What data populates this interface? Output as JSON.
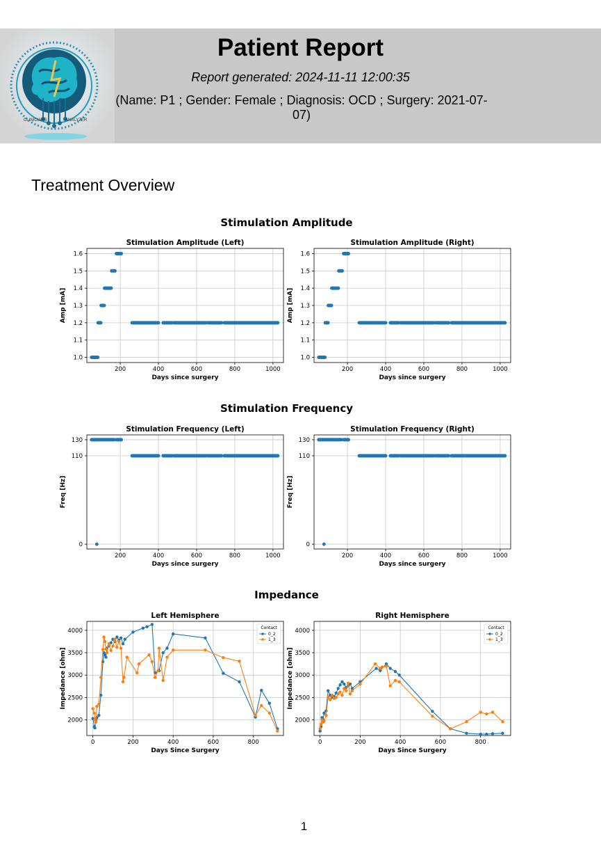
{
  "header": {
    "title": "Patient Report",
    "generated": "Report generated: 2024-11-11 12:00:35",
    "patient_info": "(Name: P1 ; Gender: Female ; Diagnosis: OCD ; Surgery: 2021-07-07)",
    "logo_text_left": "CLINICIANS",
    "logo_text_right": "ANALYZER",
    "logo_icon": "brain-circuit-logo"
  },
  "section_title": "Treatment Overview",
  "figures": {
    "amplitude": "Stimulation Amplitude",
    "frequency": "Stimulation Frequency",
    "impedance": "Impedance"
  },
  "page_number": "1",
  "colors": {
    "blue": "#1f77b4",
    "orange": "#ff7f0e",
    "header_bg": "#c8c8c8"
  },
  "chart_data": [
    {
      "id": "amp_left",
      "type": "scatter",
      "title": "Stimulation Amplitude (Left)",
      "xlabel": "Days since surgery",
      "ylabel": "Amp [mA]",
      "xlim": [
        25,
        1055
      ],
      "ylim": [
        0.97,
        1.63
      ],
      "xticks": [
        200,
        400,
        600,
        800,
        1000
      ],
      "yticks": [
        1.0,
        1.1,
        1.2,
        1.3,
        1.4,
        1.5,
        1.6
      ],
      "ytick_labels": [
        "1.0",
        "1.1",
        "1.2",
        "1.3",
        "1.4",
        "1.5",
        "1.6"
      ],
      "grid": true,
      "series": [
        {
          "color": "#1f77b4",
          "segments": [
            {
              "from": 50,
              "to": 82,
              "y": 1.0
            },
            {
              "from": 84,
              "to": 98,
              "y": 1.2
            },
            {
              "from": 100,
              "to": 116,
              "y": 1.3
            },
            {
              "from": 118,
              "to": 152,
              "y": 1.4
            },
            {
              "from": 155,
              "to": 172,
              "y": 1.5
            },
            {
              "from": 180,
              "to": 205,
              "y": 1.6
            },
            {
              "from": 262,
              "to": 400,
              "y": 1.2
            },
            {
              "from": 425,
              "to": 470,
              "y": 1.2
            },
            {
              "from": 480,
              "to": 650,
              "y": 1.2
            },
            {
              "from": 660,
              "to": 730,
              "y": 1.2
            },
            {
              "from": 745,
              "to": 1025,
              "y": 1.2
            }
          ]
        }
      ]
    },
    {
      "id": "amp_right",
      "type": "scatter",
      "title": "Stimulation Amplitude (Right)",
      "xlabel": "Days since surgery",
      "ylabel": "Amp [mA]",
      "xlim": [
        25,
        1055
      ],
      "ylim": [
        0.97,
        1.63
      ],
      "xticks": [
        200,
        400,
        600,
        800,
        1000
      ],
      "yticks": [
        1.0,
        1.1,
        1.2,
        1.3,
        1.4,
        1.5,
        1.6
      ],
      "ytick_labels": [
        "1.0",
        "1.1",
        "1.2",
        "1.3",
        "1.4",
        "1.5",
        "1.6"
      ],
      "grid": true,
      "series": [
        {
          "color": "#1f77b4",
          "segments": [
            {
              "from": 50,
              "to": 82,
              "y": 1.0
            },
            {
              "from": 84,
              "to": 98,
              "y": 1.2
            },
            {
              "from": 100,
              "to": 116,
              "y": 1.3
            },
            {
              "from": 118,
              "to": 152,
              "y": 1.4
            },
            {
              "from": 155,
              "to": 172,
              "y": 1.5
            },
            {
              "from": 180,
              "to": 205,
              "y": 1.6
            },
            {
              "from": 262,
              "to": 400,
              "y": 1.2
            },
            {
              "from": 425,
              "to": 470,
              "y": 1.2
            },
            {
              "from": 480,
              "to": 650,
              "y": 1.2
            },
            {
              "from": 660,
              "to": 730,
              "y": 1.2
            },
            {
              "from": 745,
              "to": 1025,
              "y": 1.2
            }
          ]
        }
      ]
    },
    {
      "id": "freq_left",
      "type": "scatter",
      "title": "Stimulation Frequency (Left)",
      "xlabel": "Days since surgery",
      "ylabel": "Freq [Hz]",
      "xlim": [
        25,
        1055
      ],
      "ylim": [
        -6,
        136
      ],
      "xticks": [
        200,
        400,
        600,
        800,
        1000
      ],
      "yticks": [
        0,
        110,
        130
      ],
      "ytick_labels": [
        "0",
        "110",
        "130"
      ],
      "grid": true,
      "series": [
        {
          "color": "#1f77b4",
          "segments": [
            {
              "from": 50,
              "to": 168,
              "y": 130
            },
            {
              "from": 180,
              "to": 205,
              "y": 130
            },
            {
              "from": 262,
              "to": 400,
              "y": 110
            },
            {
              "from": 425,
              "to": 470,
              "y": 110
            },
            {
              "from": 480,
              "to": 650,
              "y": 110
            },
            {
              "from": 660,
              "to": 730,
              "y": 110
            },
            {
              "from": 745,
              "to": 1025,
              "y": 110
            }
          ],
          "points": [
            {
              "x": 77,
              "y": 0
            }
          ]
        }
      ]
    },
    {
      "id": "freq_right",
      "type": "scatter",
      "title": "Stimulation Frequency (Right)",
      "xlabel": "Days since surgery",
      "ylabel": "Freq [Hz]",
      "xlim": [
        25,
        1055
      ],
      "ylim": [
        -6,
        136
      ],
      "xticks": [
        200,
        400,
        600,
        800,
        1000
      ],
      "yticks": [
        0,
        110,
        130
      ],
      "ytick_labels": [
        "0",
        "110",
        "130"
      ],
      "grid": true,
      "series": [
        {
          "color": "#1f77b4",
          "segments": [
            {
              "from": 50,
              "to": 168,
              "y": 130
            },
            {
              "from": 180,
              "to": 205,
              "y": 130
            },
            {
              "from": 262,
              "to": 400,
              "y": 110
            },
            {
              "from": 425,
              "to": 470,
              "y": 110
            },
            {
              "from": 480,
              "to": 650,
              "y": 110
            },
            {
              "from": 660,
              "to": 730,
              "y": 110
            },
            {
              "from": 745,
              "to": 1025,
              "y": 110
            }
          ],
          "points": [
            {
              "x": 77,
              "y": 0
            }
          ]
        }
      ]
    },
    {
      "id": "imp_left",
      "type": "line",
      "title": "Left Hemisphere",
      "xlabel": "Days Since Surgery",
      "ylabel": "Impedance [ohm]",
      "xlim": [
        -30,
        950
      ],
      "ylim": [
        1650,
        4200
      ],
      "xticks": [
        0,
        200,
        400,
        600,
        800
      ],
      "yticks": [
        2000,
        2500,
        3000,
        3500,
        4000
      ],
      "ytick_labels": [
        "2000",
        "2500",
        "3000",
        "3500",
        "4000"
      ],
      "grid": true,
      "legend": {
        "title": "Contact",
        "position": "top-right"
      },
      "series": [
        {
          "name": "0_2",
          "color": "#1f77b4",
          "points": [
            [
              0,
              2030
            ],
            [
              7,
              1850
            ],
            [
              10,
              1820
            ],
            [
              15,
              2000
            ],
            [
              20,
              2050
            ],
            [
              30,
              2100
            ],
            [
              40,
              2550
            ],
            [
              50,
              3300
            ],
            [
              55,
              3500
            ],
            [
              60,
              3450
            ],
            [
              65,
              3400
            ],
            [
              70,
              3600
            ],
            [
              80,
              3650
            ],
            [
              90,
              3720
            ],
            [
              100,
              3800
            ],
            [
              110,
              3750
            ],
            [
              120,
              3850
            ],
            [
              130,
              3780
            ],
            [
              140,
              3830
            ],
            [
              150,
              3700
            ],
            [
              160,
              3800
            ],
            [
              200,
              3960
            ],
            [
              250,
              4050
            ],
            [
              270,
              4080
            ],
            [
              295,
              4130
            ],
            [
              310,
              3050
            ],
            [
              330,
              3100
            ],
            [
              350,
              3500
            ],
            [
              370,
              3600
            ],
            [
              400,
              3920
            ],
            [
              560,
              3830
            ],
            [
              650,
              3040
            ],
            [
              730,
              2850
            ],
            [
              810,
              2060
            ],
            [
              840,
              2660
            ],
            [
              880,
              2370
            ],
            [
              920,
              1800
            ]
          ]
        },
        {
          "name": "1_3",
          "color": "#ff7f0e",
          "points": [
            [
              0,
              2250
            ],
            [
              7,
              2150
            ],
            [
              10,
              2000
            ],
            [
              15,
              1950
            ],
            [
              20,
              2300
            ],
            [
              30,
              2350
            ],
            [
              40,
              2950
            ],
            [
              50,
              3570
            ],
            [
              55,
              3850
            ],
            [
              60,
              3750
            ],
            [
              65,
              3580
            ],
            [
              70,
              3500
            ],
            [
              80,
              3700
            ],
            [
              90,
              3550
            ],
            [
              100,
              3650
            ],
            [
              110,
              3800
            ],
            [
              120,
              3620
            ],
            [
              130,
              3750
            ],
            [
              140,
              3600
            ],
            [
              150,
              2850
            ],
            [
              155,
              2950
            ],
            [
              170,
              3400
            ],
            [
              220,
              3050
            ],
            [
              230,
              3250
            ],
            [
              280,
              3450
            ],
            [
              295,
              3300
            ],
            [
              310,
              2950
            ],
            [
              325,
              3100
            ],
            [
              330,
              3600
            ],
            [
              350,
              2880
            ],
            [
              370,
              3400
            ],
            [
              400,
              3560
            ],
            [
              560,
              3560
            ],
            [
              650,
              3390
            ],
            [
              730,
              3310
            ],
            [
              810,
              2100
            ],
            [
              840,
              2320
            ],
            [
              880,
              2150
            ],
            [
              920,
              1750
            ]
          ]
        }
      ]
    },
    {
      "id": "imp_right",
      "type": "line",
      "title": "Right Hemisphere",
      "xlabel": "Days Since Surgery",
      "ylabel": "Impedance [ohm]",
      "xlim": [
        -30,
        950
      ],
      "ylim": [
        1650,
        4200
      ],
      "xticks": [
        0,
        200,
        400,
        600,
        800
      ],
      "yticks": [
        2000,
        2500,
        3000,
        3500,
        4000
      ],
      "ytick_labels": [
        "2000",
        "2500",
        "3000",
        "3500",
        "4000"
      ],
      "grid": true,
      "legend": {
        "title": "Contact",
        "position": "top-right"
      },
      "series": [
        {
          "name": "0_2",
          "color": "#1f77b4",
          "points": [
            [
              0,
              1750
            ],
            [
              5,
              1850
            ],
            [
              10,
              2050
            ],
            [
              15,
              2000
            ],
            [
              20,
              2150
            ],
            [
              30,
              2200
            ],
            [
              40,
              2650
            ],
            [
              50,
              2550
            ],
            [
              60,
              2500
            ],
            [
              70,
              2520
            ],
            [
              80,
              2600
            ],
            [
              90,
              2700
            ],
            [
              100,
              2780
            ],
            [
              110,
              2850
            ],
            [
              120,
              2800
            ],
            [
              130,
              2720
            ],
            [
              140,
              2760
            ],
            [
              150,
              2800
            ],
            [
              160,
              2700
            ],
            [
              200,
              2850
            ],
            [
              280,
              3150
            ],
            [
              300,
              3100
            ],
            [
              330,
              3250
            ],
            [
              350,
              3150
            ],
            [
              375,
              3080
            ],
            [
              395,
              3000
            ],
            [
              560,
              2190
            ],
            [
              650,
              1800
            ],
            [
              730,
              1700
            ],
            [
              800,
              1680
            ],
            [
              830,
              1680
            ],
            [
              860,
              1690
            ],
            [
              910,
              1700
            ]
          ]
        },
        {
          "name": "1_3",
          "color": "#ff7f0e",
          "points": [
            [
              0,
              1800
            ],
            [
              5,
              1900
            ],
            [
              10,
              2000
            ],
            [
              15,
              1950
            ],
            [
              20,
              1970
            ],
            [
              30,
              2100
            ],
            [
              40,
              2500
            ],
            [
              50,
              2450
            ],
            [
              60,
              2550
            ],
            [
              70,
              2480
            ],
            [
              80,
              2500
            ],
            [
              90,
              2580
            ],
            [
              100,
              2620
            ],
            [
              110,
              2550
            ],
            [
              120,
              2700
            ],
            [
              130,
              2650
            ],
            [
              140,
              2820
            ],
            [
              150,
              2580
            ],
            [
              160,
              2650
            ],
            [
              200,
              2800
            ],
            [
              275,
              3250
            ],
            [
              300,
              3150
            ],
            [
              310,
              3180
            ],
            [
              330,
              3200
            ],
            [
              350,
              2760
            ],
            [
              375,
              2880
            ],
            [
              395,
              2850
            ],
            [
              560,
              2080
            ],
            [
              650,
              1800
            ],
            [
              730,
              1960
            ],
            [
              800,
              2170
            ],
            [
              830,
              2130
            ],
            [
              860,
              2170
            ],
            [
              910,
              1960
            ]
          ]
        }
      ]
    }
  ]
}
